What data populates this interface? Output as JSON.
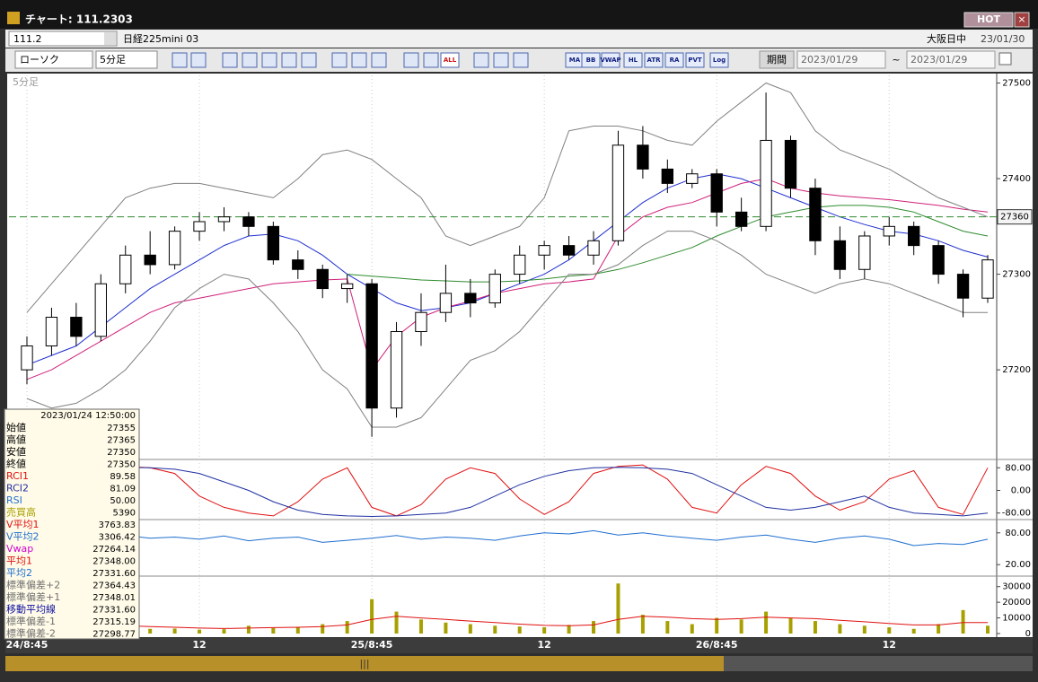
{
  "window": {
    "title": "チャート: 111.2303",
    "hot": "HOT"
  },
  "symbol_bar": {
    "code": "111.2",
    "name": "日経225mini 03",
    "market": "大阪日中",
    "date": "23/01/30"
  },
  "toolbar": {
    "chart_type": "ローソク",
    "interval": "5分足",
    "buttons": [
      "ALL",
      "MA",
      "BB",
      "VWAP",
      "HL",
      "ATR",
      "RA",
      "PVT",
      "Log"
    ],
    "period": "期間",
    "from": "2023/01/29",
    "tilde": "~",
    "to": "2023/01/29"
  },
  "chart_data": [
    {
      "type": "candlestick",
      "categories": [
        "24/8:45",
        null,
        null,
        null,
        null,
        null,
        null,
        "12",
        null,
        null,
        null,
        null,
        null,
        null,
        "25/8:45",
        null,
        null,
        null,
        null,
        null,
        null,
        "12",
        null,
        null,
        null,
        null,
        null,
        null,
        "26/8:45",
        null,
        null,
        null,
        null,
        null,
        null,
        "12",
        null,
        null,
        null,
        null
      ],
      "open": [
        27200,
        27225,
        27255,
        27235,
        27290,
        27320,
        27310,
        27345,
        27355,
        27360,
        27350,
        27315,
        27305,
        27285,
        27290,
        27160,
        27240,
        27260,
        27280,
        27270,
        27300,
        27320,
        27330,
        27320,
        27335,
        27435,
        27410,
        27395,
        27405,
        27365,
        27350,
        27440,
        27390,
        27335,
        27305,
        27340,
        27350,
        27330,
        27300,
        27275
      ],
      "high": [
        27235,
        27265,
        27270,
        27300,
        27330,
        27345,
        27350,
        27365,
        27370,
        27365,
        27355,
        27325,
        27310,
        27300,
        27295,
        27250,
        27280,
        27310,
        27295,
        27305,
        27330,
        27335,
        27340,
        27345,
        27450,
        27455,
        27420,
        27410,
        27410,
        27380,
        27490,
        27445,
        27400,
        27350,
        27345,
        27360,
        27355,
        27335,
        27305,
        27320
      ],
      "low": [
        27185,
        27215,
        27225,
        27230,
        27280,
        27300,
        27305,
        27335,
        27345,
        27340,
        27310,
        27295,
        27275,
        27270,
        27130,
        27150,
        27225,
        27250,
        27255,
        27265,
        27290,
        27305,
        27315,
        27310,
        27330,
        27400,
        27385,
        27390,
        27350,
        27345,
        27345,
        27380,
        27320,
        27295,
        27295,
        27330,
        27320,
        27290,
        27255,
        27270
      ],
      "close": [
        27225,
        27255,
        27235,
        27290,
        27320,
        27310,
        27345,
        27355,
        27360,
        27350,
        27315,
        27305,
        27285,
        27290,
        27160,
        27240,
        27260,
        27280,
        27270,
        27300,
        27320,
        27330,
        27320,
        27335,
        27435,
        27410,
        27395,
        27405,
        27365,
        27350,
        27440,
        27390,
        27335,
        27305,
        27340,
        27350,
        27330,
        27300,
        27275,
        27315
      ],
      "up_color": "#ffffff",
      "down_color": "#000000",
      "overlays": [
        {
          "color": "#1f2fd0",
          "values": [
            27205,
            27215,
            27225,
            27245,
            27265,
            27285,
            27300,
            27315,
            27330,
            27340,
            27342,
            27335,
            27320,
            27300,
            27285,
            27270,
            27262,
            27265,
            27270,
            27280,
            27290,
            27300,
            27315,
            27335,
            27355,
            27375,
            27390,
            27400,
            27405,
            27400,
            27390,
            27380,
            27370,
            27360,
            27352,
            27345,
            27342,
            27335,
            27325,
            27318
          ]
        },
        {
          "color": "#d0207a",
          "values": [
            27190,
            27200,
            27215,
            27230,
            27245,
            27260,
            27270,
            27275,
            27280,
            27285,
            27290,
            27292,
            27294,
            27295,
            27200,
            27235,
            27255,
            27265,
            27272,
            27280,
            27285,
            27290,
            27292,
            27295,
            27340,
            27360,
            27370,
            27375,
            27385,
            27395,
            27400,
            27390,
            27385,
            27382,
            27380,
            27378,
            27375,
            27372,
            27368,
            27365
          ]
        },
        {
          "color": "#2e8b2e",
          "values": [
            null,
            null,
            null,
            null,
            null,
            null,
            null,
            null,
            null,
            null,
            null,
            null,
            null,
            27300,
            27298,
            27296,
            27294,
            27293,
            27292,
            27292,
            27293,
            27295,
            27298,
            27300,
            27305,
            27312,
            27320,
            27328,
            27340,
            27350,
            27360,
            27365,
            27370,
            27372,
            27372,
            27370,
            27365,
            27355,
            27345,
            27340
          ]
        },
        {
          "color": "#808080",
          "values": [
            27260,
            27290,
            27320,
            27350,
            27380,
            27390,
            27395,
            27395,
            27390,
            27385,
            27380,
            27400,
            27425,
            27430,
            27420,
            27400,
            27380,
            27340,
            27330,
            27340,
            27350,
            27380,
            27450,
            27455,
            27455,
            27450,
            27440,
            27435,
            27460,
            27480,
            27500,
            27490,
            27450,
            27430,
            27420,
            27410,
            27395,
            27380,
            27370,
            27360
          ]
        },
        {
          "color": "#808080",
          "values": [
            27170,
            27160,
            27165,
            27180,
            27200,
            27230,
            27265,
            27285,
            27300,
            27295,
            27270,
            27240,
            27200,
            27180,
            27140,
            27140,
            27150,
            27180,
            27210,
            27220,
            27240,
            27270,
            27300,
            27300,
            27310,
            27330,
            27345,
            27345,
            27335,
            27320,
            27300,
            27290,
            27280,
            27290,
            27295,
            27290,
            27280,
            27270,
            27260,
            27260
          ]
        }
      ],
      "current_price": 27360,
      "current_color": "#2e8b2e",
      "ylim": [
        27110,
        27508
      ],
      "yticks": [
        27500,
        27400,
        27300,
        27200
      ]
    },
    {
      "type": "line",
      "series": [
        {
          "color": "#e01010",
          "values": [
            -60,
            20,
            60,
            80,
            85,
            80,
            60,
            -20,
            -60,
            -80,
            -90,
            -40,
            40,
            80,
            -60,
            -90,
            -50,
            40,
            80,
            60,
            -30,
            -85,
            -40,
            60,
            85,
            90,
            40,
            -60,
            -80,
            20,
            85,
            60,
            -20,
            -70,
            -40,
            40,
            70,
            -60,
            -85,
            80
          ]
        },
        {
          "color": "#1f2fa0",
          "values": [
            60,
            70,
            75,
            80,
            82,
            80,
            75,
            60,
            30,
            0,
            -40,
            -70,
            -85,
            -90,
            -92,
            -90,
            -85,
            -80,
            -60,
            -20,
            20,
            50,
            70,
            80,
            82,
            80,
            75,
            60,
            20,
            -20,
            -60,
            -70,
            -60,
            -40,
            -20,
            -60,
            -80,
            -85,
            -90,
            -80
          ]
        }
      ],
      "ylim": [
        -100,
        100
      ],
      "yticks": [
        {
          "value": 80,
          "label": "80.00"
        },
        {
          "value": 0,
          "label": "0.00"
        },
        {
          "value": -80,
          "label": "-80.00"
        }
      ]
    },
    {
      "type": "line",
      "series": [
        {
          "color": "#1f6fd0",
          "values": [
            85,
            78,
            82,
            72,
            75,
            70,
            72,
            68,
            74,
            65,
            70,
            72,
            62,
            66,
            70,
            75,
            68,
            72,
            70,
            66,
            74,
            80,
            78,
            84,
            76,
            80,
            74,
            70,
            66,
            72,
            76,
            68,
            62,
            70,
            74,
            68,
            56,
            60,
            58,
            68
          ]
        }
      ],
      "ylim": [
        0,
        100
      ],
      "yticks": [
        {
          "value": 80,
          "label": "80.00"
        },
        {
          "value": 20,
          "label": "20.00"
        }
      ]
    },
    {
      "type": "bar",
      "color": "#a8a000",
      "values": [
        9000,
        7000,
        5000,
        4000,
        3500,
        3000,
        3200,
        2500,
        2800,
        5000,
        3500,
        4000,
        6000,
        8000,
        22000,
        14000,
        9000,
        7000,
        6000,
        5000,
        4500,
        4000,
        5500,
        8000,
        32000,
        12000,
        8000,
        6000,
        10000,
        9000,
        14000,
        10000,
        8000,
        6000,
        5000,
        4000,
        3000,
        6000,
        15000,
        5000
      ],
      "overlays": [
        {
          "color": "#e01010",
          "values": [
            6000,
            6500,
            6000,
            5500,
            5000,
            4500,
            4000,
            3500,
            3200,
            3500,
            3800,
            4000,
            4500,
            5500,
            9000,
            11000,
            10000,
            9000,
            8000,
            7000,
            6000,
            5200,
            5000,
            5500,
            9000,
            11000,
            10500,
            9500,
            9000,
            9500,
            10500,
            10000,
            9500,
            8500,
            7500,
            6500,
            5500,
            5500,
            7000,
            7000
          ]
        }
      ],
      "ylim": [
        0,
        35000
      ],
      "yticks": [
        30000,
        20000,
        10000,
        0
      ]
    }
  ],
  "info_panel": {
    "time": "2023/01/24 12:50:00",
    "rows": [
      {
        "label": "始値",
        "value": "27355",
        "color": "#000000"
      },
      {
        "label": "高値",
        "value": "27365",
        "color": "#000000"
      },
      {
        "label": "安値",
        "value": "27350",
        "color": "#000000"
      },
      {
        "label": "終値",
        "value": "27350",
        "color": "#000000"
      },
      {
        "label": "RCI1",
        "value": "89.58",
        "color": "#e01010"
      },
      {
        "label": "RCI2",
        "value": "81.09",
        "color": "#1f2fa0"
      },
      {
        "label": "RSI",
        "value": "50.00",
        "color": "#1f6fd0"
      },
      {
        "label": "売買高",
        "value": "5390",
        "color": "#a8a000"
      },
      {
        "label": "V平均1",
        "value": "3763.83",
        "color": "#e01010"
      },
      {
        "label": "V平均2",
        "value": "3306.42",
        "color": "#1f6fd0"
      },
      {
        "label": "Vwap",
        "value": "27264.14",
        "color": "#d000d0"
      },
      {
        "label": "平均1",
        "value": "27348.00",
        "color": "#e01010"
      },
      {
        "label": "平均2",
        "value": "27331.60",
        "color": "#1f6fd0"
      },
      {
        "label": "標準偏差+2",
        "value": "27364.43",
        "color": "#707070"
      },
      {
        "label": "標準偏差+1",
        "value": "27348.01",
        "color": "#707070"
      },
      {
        "label": "移動平均線",
        "value": "27331.60",
        "color": "#1010a0"
      },
      {
        "label": "標準偏差-1",
        "value": "27315.19",
        "color": "#707070"
      },
      {
        "label": "標準偏差-2",
        "value": "27298.77",
        "color": "#707070"
      }
    ]
  }
}
